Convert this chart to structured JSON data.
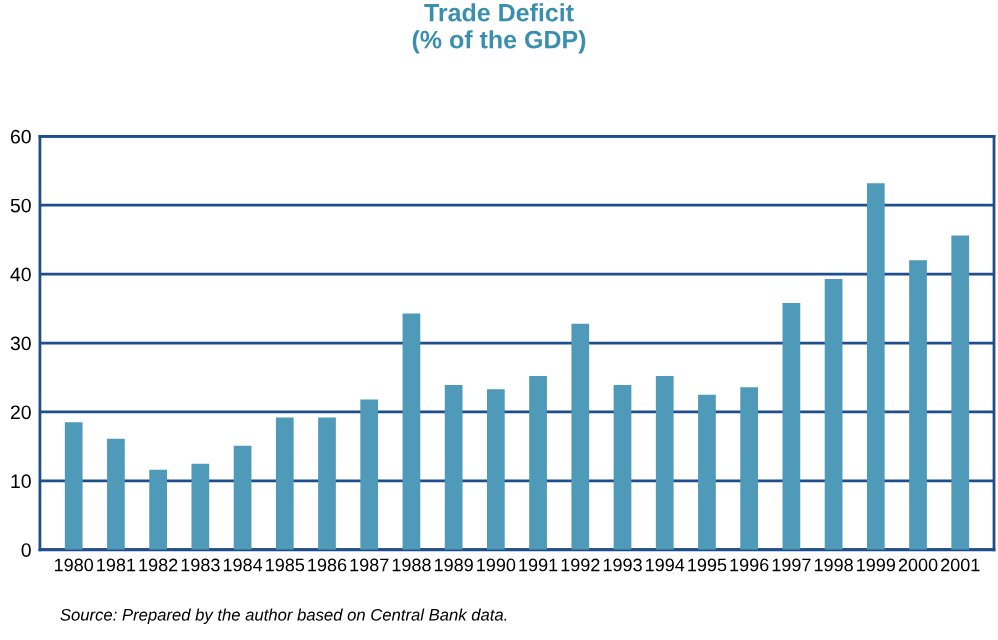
{
  "chart_data": {
    "type": "bar",
    "title": "Trade Deficit\n(% of the GDP)",
    "categories": [
      "1980",
      "1981",
      "1982",
      "1983",
      "1984",
      "1985",
      "1986",
      "1987",
      "1988",
      "1989",
      "1990",
      "1991",
      "1992",
      "1993",
      "1994",
      "1995",
      "1996",
      "1997",
      "1998",
      "1999",
      "2000",
      "2001"
    ],
    "values": [
      18.5,
      16.1,
      11.6,
      12.5,
      15.1,
      19.2,
      19.2,
      21.8,
      34.3,
      23.9,
      23.3,
      25.2,
      32.8,
      23.9,
      25.2,
      22.5,
      23.6,
      35.8,
      39.3,
      53.2,
      42.0,
      45.6
    ],
    "color": "#4f9ab8",
    "ylim": [
      0,
      60
    ],
    "yticks": [
      0,
      10,
      20,
      30,
      40,
      50,
      60
    ],
    "grid": "y",
    "annotations": [
      "Source: Prepared by the author based on Central Bank data."
    ]
  }
}
